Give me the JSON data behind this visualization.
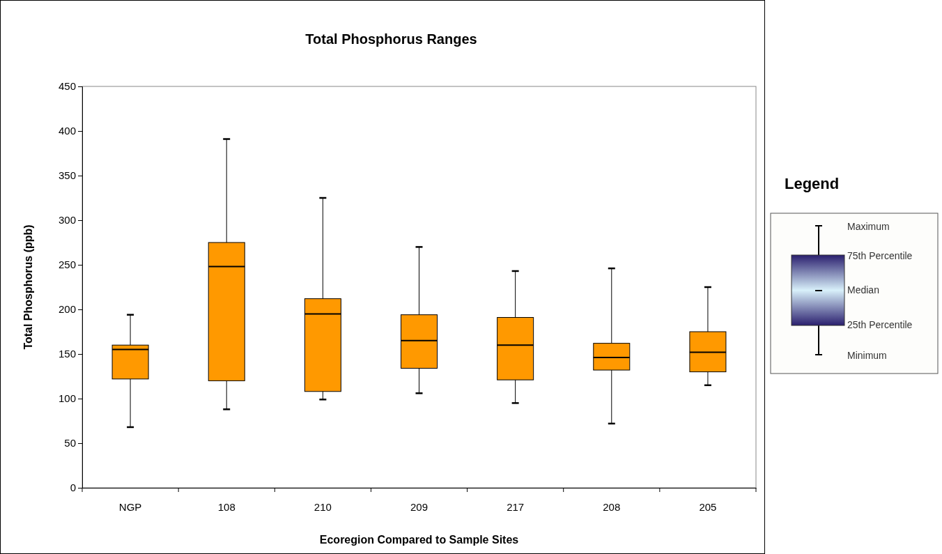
{
  "chart_data": {
    "type": "box",
    "title": "Total Phosphorus Ranges",
    "xlabel": "Ecoregion Compared to Sample Sites",
    "ylabel": "Total Phosphorus (ppb)",
    "categories": [
      "NGP",
      "108",
      "210",
      "209",
      "217",
      "208",
      "205"
    ],
    "ylim": [
      0,
      450
    ],
    "yticks": [
      0,
      50,
      100,
      150,
      200,
      250,
      300,
      350,
      400,
      450
    ],
    "series": [
      {
        "color": "#ff9900",
        "boxes": [
          {
            "low": 68,
            "q1": 122,
            "median": 155,
            "q3": 160,
            "high": 194
          },
          {
            "low": 88,
            "q1": 120,
            "median": 248,
            "q3": 275,
            "high": 391
          },
          {
            "low": 99,
            "q1": 108,
            "median": 195,
            "q3": 212,
            "high": 325
          },
          {
            "low": 106,
            "q1": 134,
            "median": 165,
            "q3": 194,
            "high": 270
          },
          {
            "low": 95,
            "q1": 121,
            "median": 160,
            "q3": 191,
            "high": 243
          },
          {
            "low": 72,
            "q1": 132,
            "median": 146,
            "q3": 162,
            "high": 246
          },
          {
            "low": 115,
            "q1": 130,
            "median": 152,
            "q3": 175,
            "high": 225
          }
        ]
      }
    ],
    "annotations": [
      "Legend",
      "Maximum",
      "75th Percentile",
      "Median",
      "25th Percentile",
      "Minimum"
    ]
  }
}
